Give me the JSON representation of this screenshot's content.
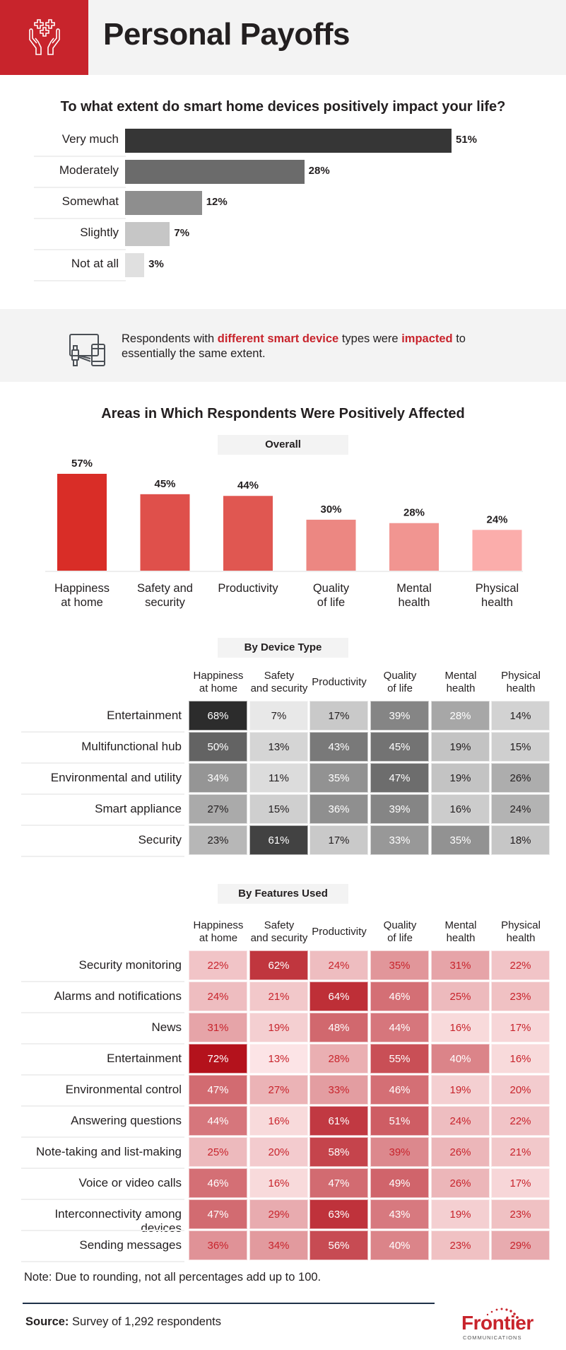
{
  "header": {
    "title": "Personal Payoffs",
    "icon": "hands-health-icon"
  },
  "impact": {
    "question": "To what extent do smart home devices positively impact your life?",
    "colors": [
      "#363636",
      "#6b6b6b",
      "#8e8e8e",
      "#c6c6c6",
      "#e0e0e0"
    ]
  },
  "banner": {
    "icon": "smart-devices-icon",
    "text_1": "Respondents with ",
    "highlight_1": "different smart device",
    "text_2": " types were ",
    "highlight_2": "impacted",
    "text_3": " to essentially the same extent."
  },
  "areas": {
    "title": "Areas in Which Respondents Were Positively Affected",
    "overall_label": "Overall",
    "by_device_label": "By Device Type",
    "by_features_label": "By Features Used",
    "column_headers": [
      [
        "Happiness",
        "at home"
      ],
      [
        "Safety",
        "and security"
      ],
      [
        "Productivity",
        ""
      ],
      [
        "Quality",
        "of life"
      ],
      [
        "Mental",
        "health"
      ],
      [
        "Physical",
        "health"
      ]
    ]
  },
  "chart_data": [
    {
      "type": "bar",
      "orientation": "horizontal",
      "title": "To what extent do smart home devices positively impact your life?",
      "categories": [
        "Very much",
        "Moderately",
        "Somewhat",
        "Slightly",
        "Not at all"
      ],
      "values": [
        51,
        28,
        12,
        7,
        3
      ],
      "value_labels": [
        "51%",
        "28%",
        "12%",
        "7%",
        "3%"
      ],
      "unit": "%"
    },
    {
      "type": "bar",
      "orientation": "vertical",
      "title": "Overall",
      "categories": [
        [
          "Happiness",
          "at home"
        ],
        [
          "Safety and",
          "security"
        ],
        [
          "Productivity"
        ],
        [
          "Quality",
          "of life"
        ],
        [
          "Mental",
          "health"
        ],
        [
          "Physical",
          "health"
        ]
      ],
      "values": [
        57,
        45,
        44,
        30,
        28,
        24
      ],
      "value_labels": [
        "57%",
        "45%",
        "44%",
        "30%",
        "28%",
        "24%"
      ],
      "colors": [
        "#d92d27",
        "#df504b",
        "#e05751",
        "#ec8782",
        "#f19591",
        "#fbadab"
      ],
      "unit": "%"
    },
    {
      "type": "heatmap",
      "title": "By Device Type",
      "columns": [
        "Happiness at home",
        "Safety and security",
        "Productivity",
        "Quality of life",
        "Mental health",
        "Physical health"
      ],
      "rows": [
        "Entertainment",
        "Multifunctional hub",
        "Environmental and utility",
        "Smart appliance",
        "Security"
      ],
      "values": [
        [
          68,
          7,
          17,
          39,
          28,
          14
        ],
        [
          50,
          13,
          43,
          45,
          19,
          15
        ],
        [
          34,
          11,
          35,
          47,
          19,
          26
        ],
        [
          27,
          15,
          36,
          39,
          16,
          24
        ],
        [
          23,
          61,
          17,
          33,
          35,
          18
        ]
      ],
      "color_scheme": "gray",
      "unit": "%"
    },
    {
      "type": "heatmap",
      "title": "By Features Used",
      "columns": [
        "Happiness at home",
        "Safety and security",
        "Productivity",
        "Quality of life",
        "Mental health",
        "Physical health"
      ],
      "rows": [
        "Security monitoring",
        "Alarms and notifications",
        "News",
        "Entertainment",
        "Environmental control",
        "Answering questions",
        "Note-taking and list-making",
        "Voice or video calls",
        "Interconnectivity among devices",
        "Sending messages"
      ],
      "values": [
        [
          22,
          62,
          24,
          35,
          31,
          22
        ],
        [
          24,
          21,
          64,
          46,
          25,
          23
        ],
        [
          31,
          19,
          48,
          44,
          16,
          17
        ],
        [
          72,
          13,
          28,
          55,
          40,
          16
        ],
        [
          47,
          27,
          33,
          46,
          19,
          20
        ],
        [
          44,
          16,
          61,
          51,
          24,
          22
        ],
        [
          25,
          20,
          58,
          39,
          26,
          21
        ],
        [
          46,
          16,
          47,
          49,
          26,
          17
        ],
        [
          47,
          29,
          63,
          43,
          19,
          23
        ],
        [
          36,
          34,
          56,
          40,
          23,
          29
        ]
      ],
      "color_scheme": "red",
      "unit": "%"
    }
  ],
  "footer": {
    "note": "Note: Due to rounding, not all percentages add up to 100.",
    "source_label": "Source:",
    "source_text": " Survey of 1,292 respondents",
    "logo_word": "Frontier",
    "logo_sub": "COMMUNICATIONS",
    "brand_color": "#c8242c"
  }
}
